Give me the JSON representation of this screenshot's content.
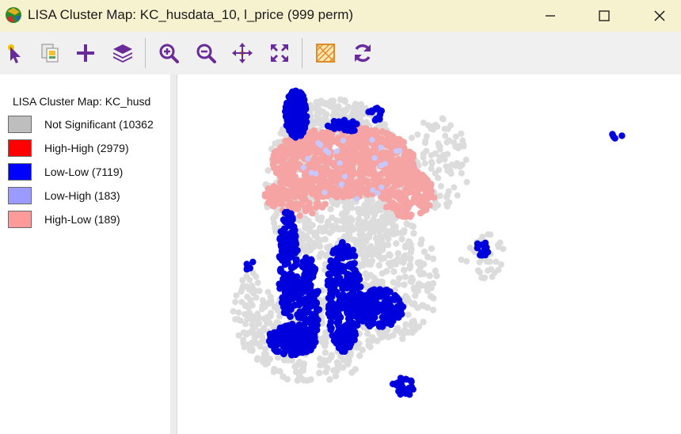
{
  "window": {
    "title": "LISA Cluster Map: KC_husdata_10, l_price (999 perm)",
    "controls": [
      "minimize",
      "maximize",
      "close"
    ]
  },
  "toolbar": {
    "buttons": [
      {
        "name": "select-tool",
        "icon": "pointer-icon"
      },
      {
        "name": "copy-image",
        "icon": "copy-icon"
      },
      {
        "name": "add-layer",
        "icon": "plus-icon"
      },
      {
        "name": "layers",
        "icon": "layers-icon"
      },
      {
        "name": "zoom-in",
        "icon": "zoom-in-icon"
      },
      {
        "name": "zoom-out",
        "icon": "zoom-out-icon"
      },
      {
        "name": "pan",
        "icon": "pan-icon"
      },
      {
        "name": "full-extent",
        "icon": "full-extent-icon"
      },
      {
        "name": "basemap",
        "icon": "basemap-icon"
      },
      {
        "name": "refresh",
        "icon": "refresh-icon"
      }
    ]
  },
  "legend": {
    "title": "LISA Cluster Map: KC_husd",
    "items": [
      {
        "label": "Not Significant (10362",
        "color": "#bebebe"
      },
      {
        "label": "High-High (2979)",
        "color": "#ff0000"
      },
      {
        "label": "Low-Low (7119)",
        "color": "#0000ff"
      },
      {
        "label": "Low-High (183)",
        "color": "#9a9aff"
      },
      {
        "label": "High-Low (189)",
        "color": "#ff9a9a"
      }
    ]
  },
  "map": {
    "colors": {
      "not_significant": "#dcdcdc",
      "high_low_pink": "#f5a3a3",
      "low_low": "#0000dd",
      "low_high": "#c8c8ff"
    }
  }
}
